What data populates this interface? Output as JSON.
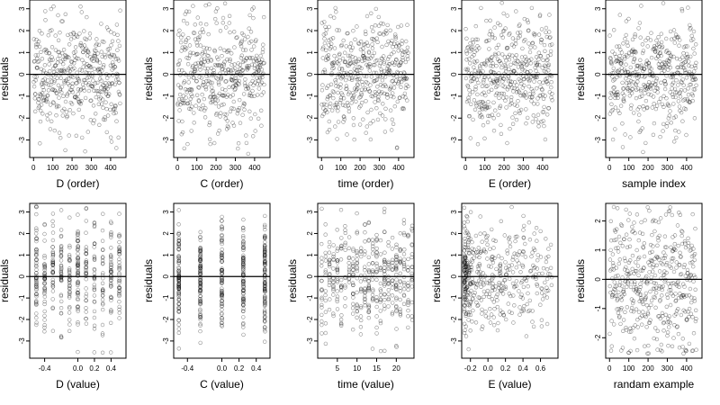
{
  "chart_data": [
    {
      "type": "scatter",
      "xlabel": "D (order)",
      "ylabel": "residuals",
      "xlim": [
        -20,
        480
      ],
      "ylim": [
        -3.8,
        3.4
      ],
      "xticks": [
        0,
        100,
        200,
        300,
        400
      ],
      "yticks": [
        -3,
        -2,
        -1,
        0,
        1,
        2,
        3
      ],
      "ref_line_y": 0,
      "x_kind": "index",
      "n_points": 450,
      "seed": 11
    },
    {
      "type": "scatter",
      "xlabel": "C (order)",
      "ylabel": "residuals",
      "xlim": [
        -20,
        480
      ],
      "ylim": [
        -3.8,
        3.4
      ],
      "xticks": [
        0,
        100,
        200,
        300,
        400
      ],
      "yticks": [
        -3,
        -2,
        -1,
        0,
        1,
        2,
        3
      ],
      "ref_line_y": 0,
      "x_kind": "index",
      "n_points": 450,
      "seed": 23
    },
    {
      "type": "scatter",
      "xlabel": "time (order)",
      "ylabel": "residuals",
      "xlim": [
        -20,
        480
      ],
      "ylim": [
        -3.8,
        3.4
      ],
      "xticks": [
        0,
        100,
        200,
        300,
        400
      ],
      "yticks": [
        -3,
        -2,
        -1,
        0,
        1,
        2,
        3
      ],
      "ref_line_y": 0,
      "x_kind": "index",
      "n_points": 450,
      "seed": 37
    },
    {
      "type": "scatter",
      "xlabel": "E (order)",
      "ylabel": "residuals",
      "xlim": [
        -20,
        480
      ],
      "ylim": [
        -3.8,
        3.4
      ],
      "xticks": [
        0,
        100,
        200,
        300,
        400
      ],
      "yticks": [
        -3,
        -2,
        -1,
        0,
        1,
        2,
        3
      ],
      "ref_line_y": 0,
      "x_kind": "index",
      "n_points": 450,
      "seed": 41
    },
    {
      "type": "scatter",
      "xlabel": "sample index",
      "ylabel": "residuals",
      "xlim": [
        -20,
        480
      ],
      "ylim": [
        -3.8,
        3.4
      ],
      "xticks": [
        0,
        100,
        200,
        300,
        400
      ],
      "yticks": [
        -3,
        -2,
        -1,
        0,
        1,
        2,
        3
      ],
      "ref_line_y": 0,
      "x_kind": "index",
      "n_points": 450,
      "seed": 53
    },
    {
      "type": "scatter",
      "xlabel": "D (value)",
      "ylabel": "residuals",
      "xlim": [
        -0.58,
        0.58
      ],
      "ylim": [
        -3.8,
        3.4
      ],
      "xticks": [
        -0.4,
        0.0,
        0.2,
        0.4
      ],
      "xtick_labels": [
        "-0.4",
        "0.0",
        "0.2",
        "0.4"
      ],
      "yticks": [
        -3,
        -2,
        -1,
        0,
        1,
        2,
        3
      ],
      "ref_line_y": 0,
      "x_kind": "levels",
      "x_levels": [
        -0.5,
        -0.4,
        -0.3,
        -0.2,
        -0.1,
        0.0,
        0.1,
        0.2,
        0.3,
        0.4,
        0.5
      ],
      "n_points": 450,
      "seed": 67
    },
    {
      "type": "scatter",
      "xlabel": "C (value)",
      "ylabel": "residuals",
      "xlim": [
        -0.56,
        0.56
      ],
      "ylim": [
        -3.8,
        3.4
      ],
      "xticks": [
        -0.4,
        0.0,
        0.2,
        0.4
      ],
      "xtick_labels": [
        "-0.4",
        "0.0",
        "0.2",
        "0.4"
      ],
      "yticks": [
        -3,
        -2,
        -1,
        0,
        1,
        2,
        3
      ],
      "ref_line_y": 0,
      "x_kind": "levels",
      "x_levels": [
        -0.5,
        -0.25,
        0.0,
        0.25,
        0.5
      ],
      "n_points": 450,
      "seed": 79
    },
    {
      "type": "scatter",
      "xlabel": "time (value)",
      "ylabel": "residuals",
      "xlim": [
        0,
        24.5
      ],
      "ylim": [
        -3.8,
        3.4
      ],
      "xticks": [
        5,
        10,
        15,
        20
      ],
      "yticks": [
        -3,
        -2,
        -1,
        0,
        1,
        2,
        3
      ],
      "ref_line_y": 0,
      "x_kind": "levels",
      "x_levels": [
        1,
        2,
        3,
        4,
        5,
        6,
        7,
        8,
        9,
        10,
        11,
        12,
        13,
        14,
        15,
        16,
        17,
        18,
        19,
        20,
        21,
        22,
        23,
        24
      ],
      "n_points": 450,
      "seed": 83
    },
    {
      "type": "scatter",
      "xlabel": "E (value)",
      "ylabel": "residuals",
      "xlim": [
        -0.3,
        0.8
      ],
      "ylim": [
        -3.8,
        3.4
      ],
      "xticks": [
        -0.2,
        0.0,
        0.2,
        0.4,
        0.6
      ],
      "xtick_labels": [
        "-0.2",
        "0.0",
        "0.2",
        "0.4",
        "0.6"
      ],
      "yticks": [
        -3,
        -2,
        -1,
        0,
        1,
        2,
        3
      ],
      "ref_line_y": 0,
      "x_kind": "skew",
      "n_points": 450,
      "seed": 97
    },
    {
      "type": "scatter",
      "xlabel": "randam example",
      "ylabel": "residuals",
      "xlim": [
        -20,
        480
      ],
      "ylim": [
        -2.7,
        2.6
      ],
      "xticks": [
        0,
        100,
        200,
        300,
        400
      ],
      "yticks": [
        -2,
        -1,
        0,
        1,
        2
      ],
      "ref_line_y": 0,
      "x_kind": "index",
      "n_points": 450,
      "seed": 101
    }
  ]
}
